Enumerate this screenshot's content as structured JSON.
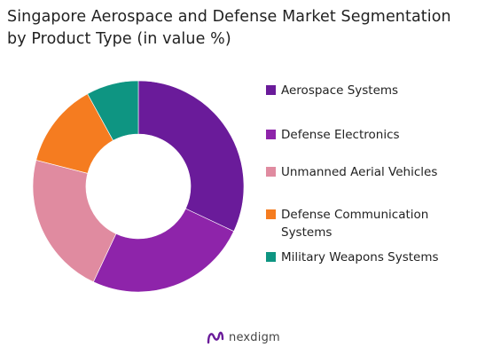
{
  "title_lines": [
    "Singapore Aerospace and Defense Market Segmentation",
    "by Product Type (in value %)"
  ],
  "chart_data": {
    "type": "pie",
    "donut": true,
    "legend_position": "right",
    "categories": [
      "Aerospace Systems",
      "Defense Electronics",
      "Unmanned Aerial Vehicles",
      "Defense Communication Systems",
      "Military Weapons Systems"
    ],
    "values": [
      32,
      25,
      22,
      13,
      8
    ],
    "colors": [
      "#6a1b9a",
      "#8e24aa",
      "#e08ba0",
      "#f57c20",
      "#0e9582"
    ]
  },
  "legend": [
    {
      "label": "Aerospace Systems",
      "color": "#6a1b9a"
    },
    {
      "label": "Defense Electronics",
      "color": "#8e24aa"
    },
    {
      "label": "Unmanned Aerial Vehicles",
      "color": "#e08ba0"
    },
    {
      "label": "Defense Communication Systems",
      "color": "#f57c20"
    },
    {
      "label": "Military Weapons Systems",
      "color": "#0e9582"
    }
  ],
  "brand": {
    "name": "nexdigm",
    "logo_color": "#6a1b9a"
  }
}
